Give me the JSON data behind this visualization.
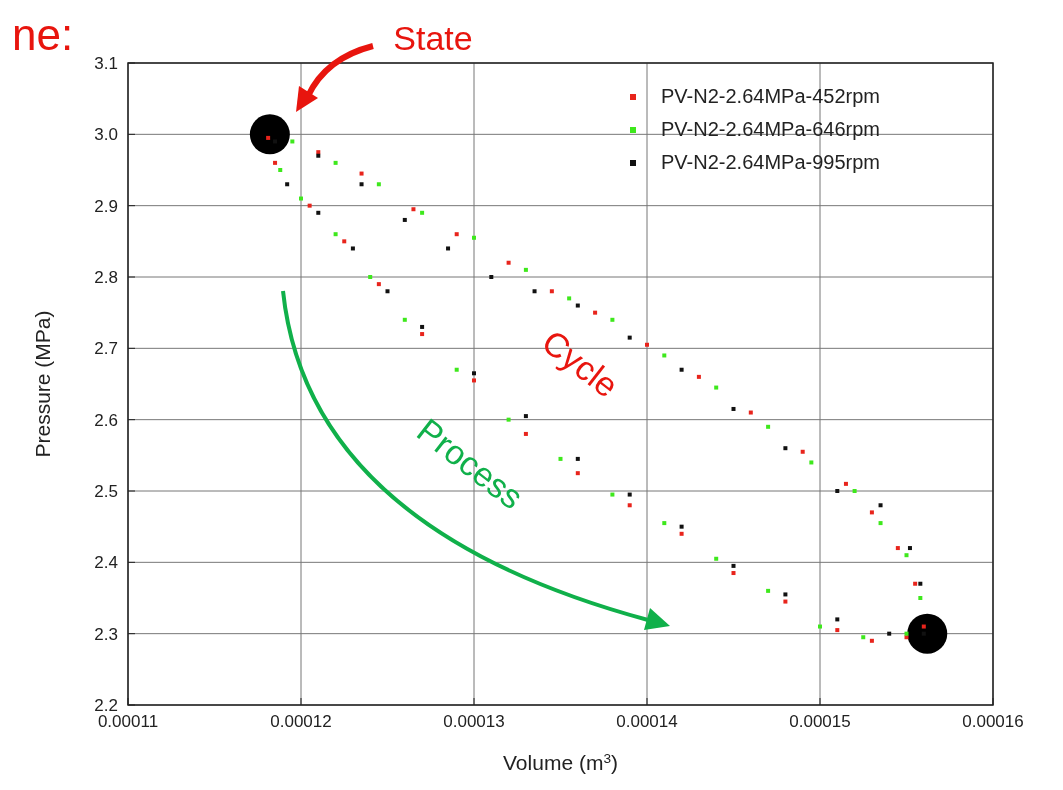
{
  "chart_data": {
    "type": "scatter",
    "xlabel": "Volume (m$^{3}$)",
    "ylabel": "Pressure (MPa)",
    "xlim": [
      0.00011,
      0.00016
    ],
    "xticks": [
      0.00011,
      0.00012,
      0.00013,
      0.00014,
      0.00015,
      0.00016
    ],
    "ylim": [
      2.2,
      3.1
    ],
    "yticks": [
      2.2,
      2.3,
      2.4,
      2.5,
      2.6,
      2.7,
      2.8,
      2.9,
      {
        "value": 3.0,
        "label": "3.0"
      },
      3.1
    ],
    "grid": true,
    "legend": "top right",
    "marker": "square",
    "annotations": [
      "ne:",
      "State",
      "Cycle",
      "Process"
    ],
    "series": [
      {
        "name": "PV-N2-2.64MPa-452rpm",
        "color": "#e8241c",
        "x": [
          0.0001181,
          0.000121,
          0.0001235,
          0.0001265,
          0.000129,
          0.000132,
          0.0001345,
          0.000137,
          0.00014,
          0.000143,
          0.000146,
          0.000149,
          0.0001515,
          0.000153,
          0.0001545,
          0.0001555,
          0.000156,
          0.000155,
          0.000153,
          0.000151,
          0.000148,
          0.000145,
          0.000142,
          0.000139,
          0.000136,
          0.000133,
          0.00013,
          0.000127,
          0.0001245,
          0.0001225,
          0.0001205,
          0.0001185
        ],
        "values": [
          2.995,
          2.975,
          2.945,
          2.895,
          2.86,
          2.82,
          2.78,
          2.75,
          2.705,
          2.66,
          2.61,
          2.555,
          2.51,
          2.47,
          2.42,
          2.37,
          2.31,
          2.295,
          2.29,
          2.305,
          2.345,
          2.385,
          2.44,
          2.48,
          2.525,
          2.58,
          2.655,
          2.72,
          2.79,
          2.85,
          2.9,
          2.96
        ]
      },
      {
        "name": "PV-N2-2.64MPa-646rpm",
        "color": "#3ee81c",
        "x": [
          0.0001195,
          0.000122,
          0.0001245,
          0.000127,
          0.00013,
          0.000133,
          0.0001355,
          0.000138,
          0.000141,
          0.000144,
          0.000147,
          0.0001495,
          0.000152,
          0.0001535,
          0.000155,
          0.0001558,
          0.000155,
          0.0001525,
          0.00015,
          0.000147,
          0.000144,
          0.000141,
          0.000138,
          0.000135,
          0.000132,
          0.000129,
          0.000126,
          0.000124,
          0.000122,
          0.00012,
          0.0001188
        ],
        "values": [
          2.99,
          2.96,
          2.93,
          2.89,
          2.855,
          2.81,
          2.77,
          2.74,
          2.69,
          2.645,
          2.59,
          2.54,
          2.5,
          2.455,
          2.41,
          2.35,
          2.3,
          2.295,
          2.31,
          2.36,
          2.405,
          2.455,
          2.495,
          2.545,
          2.6,
          2.67,
          2.74,
          2.8,
          2.86,
          2.91,
          2.95
        ]
      },
      {
        "name": "PV-N2-2.64MPa-995rpm",
        "color": "#111111",
        "x": [
          0.0001185,
          0.000121,
          0.0001235,
          0.000126,
          0.0001285,
          0.000131,
          0.0001335,
          0.000136,
          0.000139,
          0.000142,
          0.000145,
          0.000148,
          0.000151,
          0.0001535,
          0.0001552,
          0.0001558,
          0.000156,
          0.000154,
          0.000151,
          0.000148,
          0.000145,
          0.000142,
          0.000139,
          0.000136,
          0.000133,
          0.00013,
          0.000127,
          0.000125,
          0.000123,
          0.000121,
          0.0001192
        ],
        "values": [
          2.99,
          2.97,
          2.93,
          2.88,
          2.84,
          2.8,
          2.78,
          2.76,
          2.715,
          2.67,
          2.615,
          2.56,
          2.5,
          2.48,
          2.42,
          2.37,
          2.3,
          2.3,
          2.32,
          2.355,
          2.395,
          2.45,
          2.495,
          2.545,
          2.605,
          2.665,
          2.73,
          2.78,
          2.84,
          2.89,
          2.93
        ]
      },
      {
        "color": "#000000",
        "marker": "circle",
        "x": [
          0.0001182,
          0.0001562
        ],
        "values": [
          3.0,
          2.3
        ]
      }
    ]
  }
}
